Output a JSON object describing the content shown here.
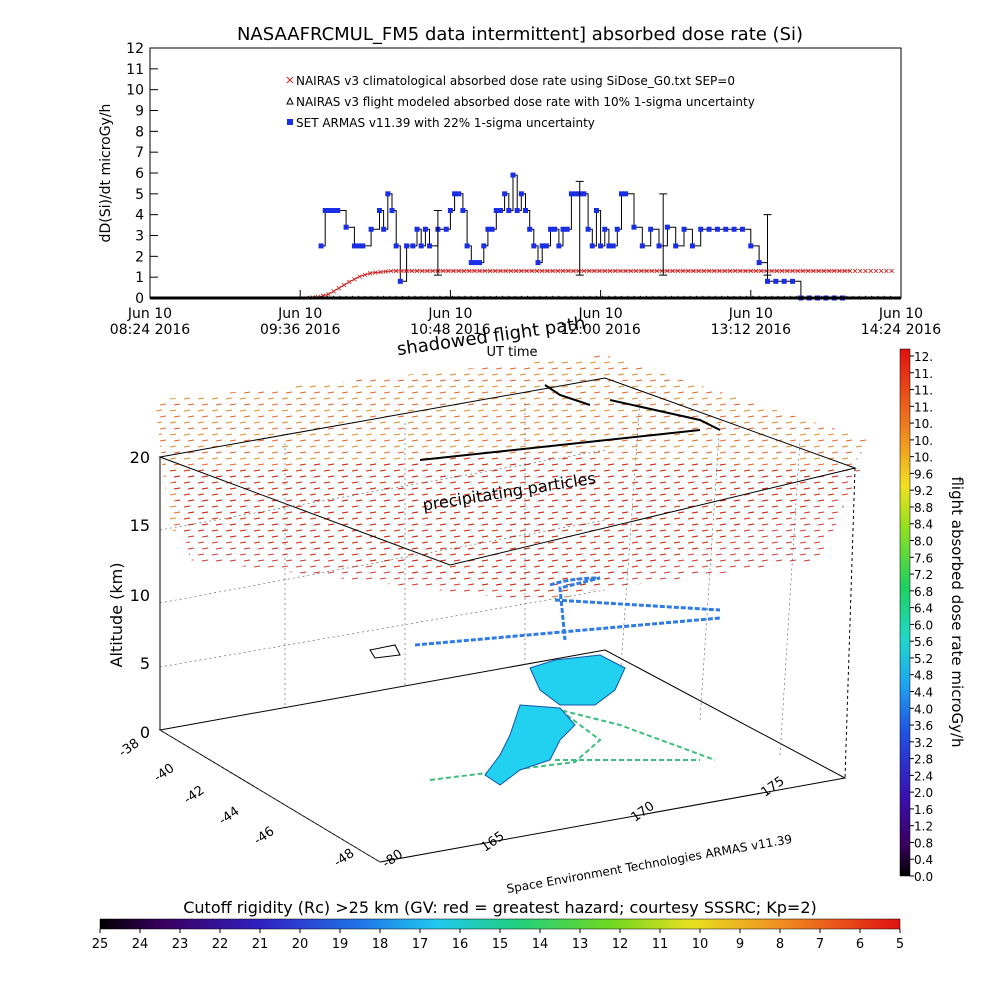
{
  "chart_data": [
    {
      "type": "line",
      "title": "NASAAFRCMUL_FM5 data intermittent] absorbed dose rate (Si)",
      "ylabel": "dD(Si)/dt microGy/h",
      "ylim": [
        0,
        12
      ],
      "yticks": [
        "0",
        "1",
        "2",
        "3",
        "4",
        "5",
        "6",
        "7",
        "8",
        "9",
        "10",
        "11",
        "12"
      ],
      "xlabel": "UT time",
      "xtick_line1": [
        "Jun 10",
        "Jun 10",
        "Jun 10",
        "Jun 10",
        "Jun 10",
        "Jun 10"
      ],
      "xtick_line2": [
        "08:24 2016",
        "09:36 2016",
        "10:48 2016",
        "12:00 2016",
        "13:12 2016",
        "14:24 2016"
      ],
      "x_range_minutes": [
        504,
        864
      ],
      "overlay_text": "shadowed flight path",
      "legend_placement": "top-left",
      "legend": [
        {
          "name": "NAIRAS v3 climatological absorbed dose rate using SiDose_G0.txt SEP=0",
          "marker": "x",
          "color": "#cc2222"
        },
        {
          "name": "NAIRAS v3 flight modeled absorbed dose rate with 10% 1-sigma uncertainty",
          "marker": "triangle",
          "color": "#000000"
        },
        {
          "name": "SET ARMAS v11.39 with 22% 1-sigma uncertainty",
          "marker": "square",
          "color": "#1a2ee6"
        }
      ],
      "series": [
        {
          "name": "SET ARMAS v11.39 with 22% 1-sigma uncertainty",
          "color": "#1a2ee6",
          "x": [
            586,
            588,
            590,
            592,
            594,
            598,
            602,
            604,
            606,
            610,
            614,
            616,
            618,
            620,
            622,
            624,
            627,
            630,
            632,
            634,
            636,
            638,
            642,
            646,
            648,
            650,
            652,
            654,
            656,
            658,
            660,
            662,
            664,
            666,
            668,
            670,
            672,
            674,
            676,
            678,
            680,
            682,
            684,
            686,
            688,
            690,
            692,
            694,
            696,
            698,
            700,
            702,
            704,
            706,
            708,
            710,
            712,
            714,
            716,
            718,
            720,
            722,
            724,
            726,
            728,
            730,
            732,
            736,
            740,
            744,
            748,
            752,
            756,
            760,
            764,
            768,
            772,
            776,
            780,
            784,
            788,
            792,
            796,
            800,
            804,
            808,
            812,
            816,
            820,
            824,
            828,
            832,
            836
          ],
          "y": [
            2.5,
            4.2,
            4.2,
            4.2,
            4.2,
            3.4,
            2.5,
            2.5,
            2.5,
            3.3,
            4.2,
            3.3,
            5.0,
            4.2,
            2.5,
            0.8,
            2.5,
            2.5,
            3.3,
            2.5,
            3.3,
            2.5,
            3.3,
            3.3,
            4.2,
            5.0,
            5.0,
            4.2,
            2.5,
            1.7,
            1.7,
            1.7,
            2.5,
            3.3,
            3.3,
            4.2,
            4.2,
            5.0,
            4.2,
            5.9,
            4.2,
            5.0,
            4.2,
            3.3,
            2.5,
            1.7,
            2.5,
            2.5,
            3.3,
            3.3,
            2.5,
            3.3,
            3.3,
            5.0,
            5.0,
            5.0,
            5.0,
            3.3,
            2.5,
            4.2,
            2.5,
            3.3,
            2.5,
            2.5,
            3.3,
            5.0,
            5.0,
            3.4,
            2.5,
            3.3,
            2.5,
            3.4,
            2.5,
            3.3,
            2.5,
            3.3,
            3.3,
            3.3,
            3.3,
            3.3,
            3.3,
            2.5,
            1.7,
            0.8,
            0.8,
            0.8,
            0.8,
            0.0,
            0.0,
            0.0,
            0.0,
            0.0,
            0.0
          ]
        },
        {
          "name": "NAIRAS v3 climatological absorbed dose rate using SiDose_G0.txt SEP=0",
          "color": "#cc2222",
          "x": [
            580,
            585,
            590,
            595,
            600,
            605,
            610,
            615,
            620,
            640,
            660,
            680,
            700,
            720,
            740,
            760,
            780,
            800,
            820,
            840
          ],
          "y": [
            0.0,
            0.05,
            0.2,
            0.5,
            0.8,
            1.05,
            1.2,
            1.25,
            1.3,
            1.3,
            1.3,
            1.3,
            1.3,
            1.3,
            1.3,
            1.3,
            1.3,
            1.3,
            1.3,
            1.3
          ]
        },
        {
          "name": "NAIRAS v3 flight modeled absorbed dose rate with 10% 1-sigma uncertainty",
          "color": "#000000",
          "x": [
            504,
            864
          ],
          "y": [
            0.0,
            0.0
          ]
        }
      ],
      "error_bars_minutes": [
        642,
        710,
        750,
        800
      ],
      "error_bar_values": [
        4.2,
        5.6,
        5.0,
        4.0
      ]
    },
    {
      "type": "scatter",
      "ylabel": "Altitude (km)",
      "zticks": [
        "0",
        "5",
        "10",
        "15",
        "20"
      ],
      "lat_ticks": [
        "-38",
        "-40",
        "-42",
        "-44",
        "-46",
        "-48"
      ],
      "lon_ticks": [
        "165",
        "170",
        "175",
        "-80"
      ],
      "annotation": "precipitating particles",
      "credit": "Space Environment Technologies ARMAS v11.39"
    },
    {
      "type": "heatmap",
      "colorbar_label": "flight absorbed dose rate microGy/h",
      "colorbar_ticks": [
        "12.",
        "11.",
        "11.",
        "11.",
        "10.",
        "10.",
        "10.",
        "9.6",
        "9.2",
        "8.8",
        "8.4",
        "8.0",
        "7.6",
        "7.2",
        "6.8",
        "6.4",
        "6.0",
        "5.6",
        "5.2",
        "4.8",
        "4.4",
        "4.0",
        "3.6",
        "3.2",
        "2.8",
        "2.4",
        "2.0",
        "1.6",
        "1.2",
        "0.8",
        "0.4",
        "0.0"
      ]
    },
    {
      "type": "heatmap",
      "colorbar_label": "Cutoff rigidity (Rc) >25 km (GV: red = greatest hazard; courtesy SSSRC; Kp=2)",
      "colorbar_ticks": [
        "25",
        "24",
        "23",
        "22",
        "21",
        "20",
        "19",
        "18",
        "17",
        "16",
        "15",
        "14",
        "13",
        "12",
        "11",
        "10",
        "9",
        "8",
        "7",
        "6",
        "5"
      ]
    }
  ]
}
